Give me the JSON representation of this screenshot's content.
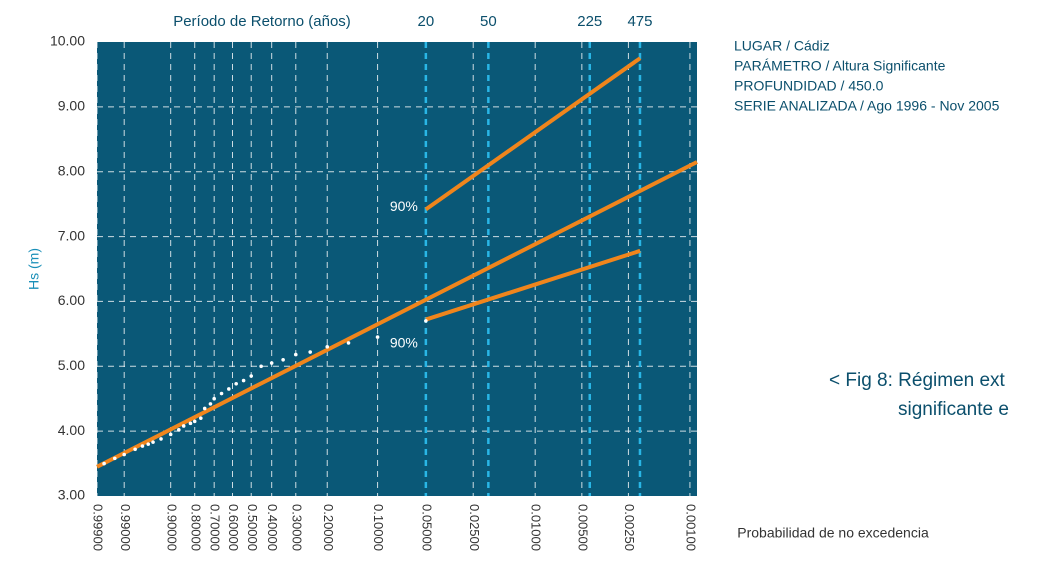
{
  "chart_data": {
    "type": "line",
    "title": "Período de Retorno (años)",
    "ylabel": "Hs (m)",
    "xlabel": "Probabilidad de no excedencia",
    "xscale": "gumbel",
    "xlim": [
      0.999,
      0.0009
    ],
    "ylim": [
      3,
      10
    ],
    "yticks": [
      {
        "value": 3,
        "label": "3.00"
      },
      {
        "value": 4,
        "label": "4.00"
      },
      {
        "value": 5,
        "label": "5.00"
      },
      {
        "value": 6,
        "label": "6.00"
      },
      {
        "value": 7,
        "label": "7.00"
      },
      {
        "value": 8,
        "label": "8.00"
      },
      {
        "value": 9,
        "label": "9.00"
      },
      {
        "value": 10,
        "label": "10.00"
      }
    ],
    "xticks": [
      {
        "value": 0.999,
        "label": "0.99900"
      },
      {
        "value": 0.99,
        "label": "0.99000"
      },
      {
        "value": 0.9,
        "label": "0.90000"
      },
      {
        "value": 0.8,
        "label": "0.80000"
      },
      {
        "value": 0.7,
        "label": "0.70000"
      },
      {
        "value": 0.6,
        "label": "0.60000"
      },
      {
        "value": 0.5,
        "label": "0.50000"
      },
      {
        "value": 0.4,
        "label": "0.40000"
      },
      {
        "value": 0.3,
        "label": "0.30000"
      },
      {
        "value": 0.2,
        "label": "0.20000"
      },
      {
        "value": 0.1,
        "label": "0.10000"
      },
      {
        "value": 0.05,
        "label": "0.05000"
      },
      {
        "value": 0.025,
        "label": "0.02500"
      },
      {
        "value": 0.01,
        "label": "0.01000"
      },
      {
        "value": 0.005,
        "label": "0.00500"
      },
      {
        "value": 0.0025,
        "label": "0.00250"
      },
      {
        "value": 0.001,
        "label": "0.00100"
      }
    ],
    "x2ticks": [
      20,
      50,
      225,
      475
    ],
    "grid": true,
    "background": "#0a5877",
    "grid_color": "#ffffff",
    "x2_grid_color": "#29b6e6",
    "series": [
      {
        "type": "line",
        "color": "#f0851c",
        "x": [
          0.999,
          0.0009
        ],
        "values": [
          3.45,
          8.15
        ]
      },
      {
        "type": "line",
        "color": "#f0851c",
        "label": "90%",
        "x": [
          0.05,
          0.0021
        ],
        "values": [
          7.42,
          9.75
        ]
      },
      {
        "type": "line",
        "color": "#f0851c",
        "label": "90%",
        "x": [
          0.05,
          0.0021
        ],
        "values": [
          5.72,
          6.78
        ]
      },
      {
        "type": "scatter",
        "color": "#ffffff",
        "x": [
          0.998,
          0.995,
          0.99,
          0.98,
          0.97,
          0.96,
          0.95,
          0.93,
          0.9,
          0.87,
          0.85,
          0.82,
          0.8,
          0.77,
          0.75,
          0.72,
          0.7,
          0.66,
          0.62,
          0.58,
          0.54,
          0.5,
          0.45,
          0.4,
          0.35,
          0.3,
          0.25,
          0.2,
          0.15,
          0.1,
          0.05
        ],
        "values": [
          3.5,
          3.58,
          3.64,
          3.72,
          3.77,
          3.8,
          3.83,
          3.88,
          3.95,
          4.02,
          4.08,
          4.12,
          4.15,
          4.2,
          4.35,
          4.42,
          4.5,
          4.58,
          4.65,
          4.73,
          4.78,
          4.85,
          5.0,
          5.05,
          5.1,
          5.18,
          5.22,
          5.3,
          5.36,
          5.45,
          5.7
        ]
      }
    ]
  },
  "info": [
    "LUGAR / Cádiz",
    "PARÁMETRO / Altura Significante",
    "PROFUNDIDAD / 450.0",
    "SERIE ANALIZADA / Ago 1996 - Nov 2005"
  ],
  "caption": [
    "< Fig 8: Régimen ext",
    "significante e"
  ]
}
